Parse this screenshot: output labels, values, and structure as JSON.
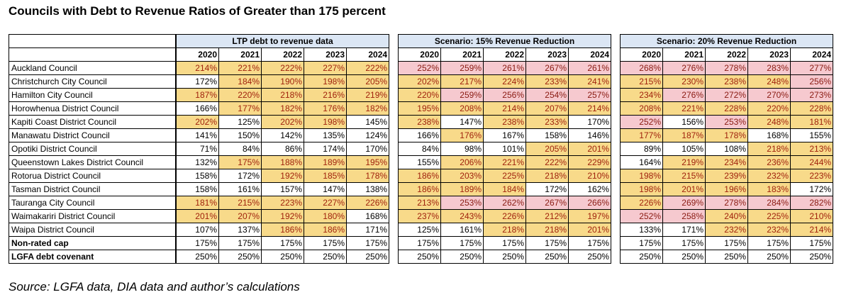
{
  "title": "Councils with Debt to Revenue Ratios of Greater than 175 percent",
  "source": "Source: LGFA data, DIA data and author’s calculations",
  "years": [
    "2020",
    "2021",
    "2022",
    "2023",
    "2024"
  ],
  "highlight_colors": {
    "h": "#f8da8a",
    "p": "#f6c9cf",
    "text": "#a0220d"
  },
  "groups": [
    {
      "label": "LTP debt to revenue data"
    },
    {
      "label": "Scenario: 15% Revenue Reduction"
    },
    {
      "label": "Scenario: 20% Revenue Reduction"
    }
  ],
  "rows": [
    {
      "name": "Auckland Council",
      "bold": false,
      "g1": [
        [
          "214%",
          "h"
        ],
        [
          "221%",
          "h"
        ],
        [
          "222%",
          "h"
        ],
        [
          "227%",
          "h"
        ],
        [
          "222%",
          "h"
        ]
      ],
      "g2": [
        [
          "252%",
          "p"
        ],
        [
          "259%",
          "p"
        ],
        [
          "261%",
          "p"
        ],
        [
          "267%",
          "p"
        ],
        [
          "261%",
          "p"
        ]
      ],
      "g3": [
        [
          "268%",
          "p"
        ],
        [
          "276%",
          "p"
        ],
        [
          "278%",
          "p"
        ],
        [
          "283%",
          "p"
        ],
        [
          "277%",
          "p"
        ]
      ]
    },
    {
      "name": "Christchurch City Council",
      "bold": false,
      "g1": [
        [
          "172%",
          ""
        ],
        [
          "184%",
          "h"
        ],
        [
          "190%",
          "h"
        ],
        [
          "198%",
          "h"
        ],
        [
          "205%",
          "h"
        ]
      ],
      "g2": [
        [
          "202%",
          "h"
        ],
        [
          "217%",
          "h"
        ],
        [
          "224%",
          "h"
        ],
        [
          "233%",
          "h"
        ],
        [
          "241%",
          "h"
        ]
      ],
      "g3": [
        [
          "215%",
          "h"
        ],
        [
          "230%",
          "h"
        ],
        [
          "238%",
          "h"
        ],
        [
          "248%",
          "h"
        ],
        [
          "256%",
          "p"
        ]
      ]
    },
    {
      "name": "Hamilton City Council",
      "bold": false,
      "g1": [
        [
          "187%",
          "h"
        ],
        [
          "220%",
          "h"
        ],
        [
          "218%",
          "h"
        ],
        [
          "216%",
          "h"
        ],
        [
          "219%",
          "h"
        ]
      ],
      "g2": [
        [
          "220%",
          "h"
        ],
        [
          "259%",
          "p"
        ],
        [
          "256%",
          "p"
        ],
        [
          "254%",
          "p"
        ],
        [
          "257%",
          "p"
        ]
      ],
      "g3": [
        [
          "234%",
          "h"
        ],
        [
          "276%",
          "p"
        ],
        [
          "272%",
          "p"
        ],
        [
          "270%",
          "p"
        ],
        [
          "273%",
          "p"
        ]
      ]
    },
    {
      "name": "Horowhenua District Council",
      "bold": false,
      "g1": [
        [
          "166%",
          ""
        ],
        [
          "177%",
          "h"
        ],
        [
          "182%",
          "h"
        ],
        [
          "176%",
          "h"
        ],
        [
          "182%",
          "h"
        ]
      ],
      "g2": [
        [
          "195%",
          "h"
        ],
        [
          "208%",
          "h"
        ],
        [
          "214%",
          "h"
        ],
        [
          "207%",
          "h"
        ],
        [
          "214%",
          "h"
        ]
      ],
      "g3": [
        [
          "208%",
          "h"
        ],
        [
          "221%",
          "h"
        ],
        [
          "228%",
          "h"
        ],
        [
          "220%",
          "h"
        ],
        [
          "228%",
          "h"
        ]
      ]
    },
    {
      "name": "Kapiti Coast District Council",
      "bold": false,
      "g1": [
        [
          "202%",
          "h"
        ],
        [
          "125%",
          ""
        ],
        [
          "202%",
          "h"
        ],
        [
          "198%",
          "h"
        ],
        [
          "145%",
          ""
        ]
      ],
      "g2": [
        [
          "238%",
          "h"
        ],
        [
          "147%",
          ""
        ],
        [
          "238%",
          "h"
        ],
        [
          "233%",
          "h"
        ],
        [
          "170%",
          ""
        ]
      ],
      "g3": [
        [
          "252%",
          "p"
        ],
        [
          "156%",
          ""
        ],
        [
          "253%",
          "p"
        ],
        [
          "248%",
          "h"
        ],
        [
          "181%",
          "h"
        ]
      ]
    },
    {
      "name": "Manawatu District Council",
      "bold": false,
      "g1": [
        [
          "141%",
          ""
        ],
        [
          "150%",
          ""
        ],
        [
          "142%",
          ""
        ],
        [
          "135%",
          ""
        ],
        [
          "124%",
          ""
        ]
      ],
      "g2": [
        [
          "166%",
          ""
        ],
        [
          "176%",
          "h"
        ],
        [
          "167%",
          ""
        ],
        [
          "158%",
          ""
        ],
        [
          "146%",
          ""
        ]
      ],
      "g3": [
        [
          "177%",
          "h"
        ],
        [
          "187%",
          "h"
        ],
        [
          "178%",
          "h"
        ],
        [
          "168%",
          ""
        ],
        [
          "155%",
          ""
        ]
      ]
    },
    {
      "name": "Opotiki District Council",
      "bold": false,
      "g1": [
        [
          "71%",
          ""
        ],
        [
          "84%",
          ""
        ],
        [
          "86%",
          ""
        ],
        [
          "174%",
          ""
        ],
        [
          "170%",
          ""
        ]
      ],
      "g2": [
        [
          "84%",
          ""
        ],
        [
          "98%",
          ""
        ],
        [
          "101%",
          ""
        ],
        [
          "205%",
          "h"
        ],
        [
          "201%",
          "h"
        ]
      ],
      "g3": [
        [
          "89%",
          ""
        ],
        [
          "105%",
          ""
        ],
        [
          "108%",
          ""
        ],
        [
          "218%",
          "h"
        ],
        [
          "213%",
          "h"
        ]
      ]
    },
    {
      "name": "Queenstown Lakes District Council",
      "bold": false,
      "g1": [
        [
          "132%",
          ""
        ],
        [
          "175%",
          "h"
        ],
        [
          "188%",
          "h"
        ],
        [
          "189%",
          "h"
        ],
        [
          "195%",
          "h"
        ]
      ],
      "g2": [
        [
          "155%",
          ""
        ],
        [
          "206%",
          "h"
        ],
        [
          "221%",
          "h"
        ],
        [
          "222%",
          "h"
        ],
        [
          "229%",
          "h"
        ]
      ],
      "g3": [
        [
          "164%",
          ""
        ],
        [
          "219%",
          "h"
        ],
        [
          "234%",
          "h"
        ],
        [
          "236%",
          "h"
        ],
        [
          "244%",
          "h"
        ]
      ]
    },
    {
      "name": "Rotorua District Council",
      "bold": false,
      "g1": [
        [
          "158%",
          ""
        ],
        [
          "172%",
          ""
        ],
        [
          "192%",
          "h"
        ],
        [
          "185%",
          "h"
        ],
        [
          "178%",
          "h"
        ]
      ],
      "g2": [
        [
          "186%",
          "h"
        ],
        [
          "203%",
          "h"
        ],
        [
          "225%",
          "h"
        ],
        [
          "218%",
          "h"
        ],
        [
          "210%",
          "h"
        ]
      ],
      "g3": [
        [
          "198%",
          "h"
        ],
        [
          "215%",
          "h"
        ],
        [
          "239%",
          "h"
        ],
        [
          "232%",
          "h"
        ],
        [
          "223%",
          "h"
        ]
      ]
    },
    {
      "name": "Tasman District Council",
      "bold": false,
      "g1": [
        [
          "158%",
          ""
        ],
        [
          "161%",
          ""
        ],
        [
          "157%",
          ""
        ],
        [
          "147%",
          ""
        ],
        [
          "138%",
          ""
        ]
      ],
      "g2": [
        [
          "186%",
          "h"
        ],
        [
          "189%",
          "h"
        ],
        [
          "184%",
          "h"
        ],
        [
          "172%",
          ""
        ],
        [
          "162%",
          ""
        ]
      ],
      "g3": [
        [
          "198%",
          "h"
        ],
        [
          "201%",
          "h"
        ],
        [
          "196%",
          "h"
        ],
        [
          "183%",
          "h"
        ],
        [
          "172%",
          ""
        ]
      ]
    },
    {
      "name": "Tauranga City Council",
      "bold": false,
      "g1": [
        [
          "181%",
          "h"
        ],
        [
          "215%",
          "h"
        ],
        [
          "223%",
          "h"
        ],
        [
          "227%",
          "h"
        ],
        [
          "226%",
          "h"
        ]
      ],
      "g2": [
        [
          "213%",
          "h"
        ],
        [
          "253%",
          "p"
        ],
        [
          "262%",
          "p"
        ],
        [
          "267%",
          "p"
        ],
        [
          "266%",
          "p"
        ]
      ],
      "g3": [
        [
          "226%",
          "h"
        ],
        [
          "269%",
          "p"
        ],
        [
          "278%",
          "p"
        ],
        [
          "284%",
          "p"
        ],
        [
          "282%",
          "p"
        ]
      ]
    },
    {
      "name": "Waimakariri District Council",
      "bold": false,
      "g1": [
        [
          "201%",
          "h"
        ],
        [
          "207%",
          "h"
        ],
        [
          "192%",
          "h"
        ],
        [
          "180%",
          "h"
        ],
        [
          "168%",
          ""
        ]
      ],
      "g2": [
        [
          "237%",
          "h"
        ],
        [
          "243%",
          "h"
        ],
        [
          "226%",
          "h"
        ],
        [
          "212%",
          "h"
        ],
        [
          "197%",
          "h"
        ]
      ],
      "g3": [
        [
          "252%",
          "p"
        ],
        [
          "258%",
          "p"
        ],
        [
          "240%",
          "h"
        ],
        [
          "225%",
          "h"
        ],
        [
          "210%",
          "h"
        ]
      ]
    },
    {
      "name": "Waipa District Council",
      "bold": false,
      "g1": [
        [
          "107%",
          ""
        ],
        [
          "137%",
          ""
        ],
        [
          "186%",
          "h"
        ],
        [
          "186%",
          "h"
        ],
        [
          "171%",
          ""
        ]
      ],
      "g2": [
        [
          "125%",
          ""
        ],
        [
          "161%",
          ""
        ],
        [
          "218%",
          "h"
        ],
        [
          "218%",
          "h"
        ],
        [
          "201%",
          "h"
        ]
      ],
      "g3": [
        [
          "133%",
          ""
        ],
        [
          "171%",
          ""
        ],
        [
          "232%",
          "h"
        ],
        [
          "232%",
          "h"
        ],
        [
          "214%",
          "h"
        ]
      ]
    },
    {
      "name": "Non-rated cap",
      "bold": true,
      "g1": [
        [
          "175%",
          ""
        ],
        [
          "175%",
          ""
        ],
        [
          "175%",
          ""
        ],
        [
          "175%",
          ""
        ],
        [
          "175%",
          ""
        ]
      ],
      "g2": [
        [
          "175%",
          ""
        ],
        [
          "175%",
          ""
        ],
        [
          "175%",
          ""
        ],
        [
          "175%",
          ""
        ],
        [
          "175%",
          ""
        ]
      ],
      "g3": [
        [
          "175%",
          ""
        ],
        [
          "175%",
          ""
        ],
        [
          "175%",
          ""
        ],
        [
          "175%",
          ""
        ],
        [
          "175%",
          ""
        ]
      ]
    },
    {
      "name": "LGFA debt covenant",
      "bold": true,
      "g1": [
        [
          "250%",
          ""
        ],
        [
          "250%",
          ""
        ],
        [
          "250%",
          ""
        ],
        [
          "250%",
          ""
        ],
        [
          "250%",
          ""
        ]
      ],
      "g2": [
        [
          "250%",
          ""
        ],
        [
          "250%",
          ""
        ],
        [
          "250%",
          ""
        ],
        [
          "250%",
          ""
        ],
        [
          "250%",
          ""
        ]
      ],
      "g3": [
        [
          "250%",
          ""
        ],
        [
          "250%",
          ""
        ],
        [
          "250%",
          ""
        ],
        [
          "250%",
          ""
        ],
        [
          "250%",
          ""
        ]
      ]
    }
  ]
}
